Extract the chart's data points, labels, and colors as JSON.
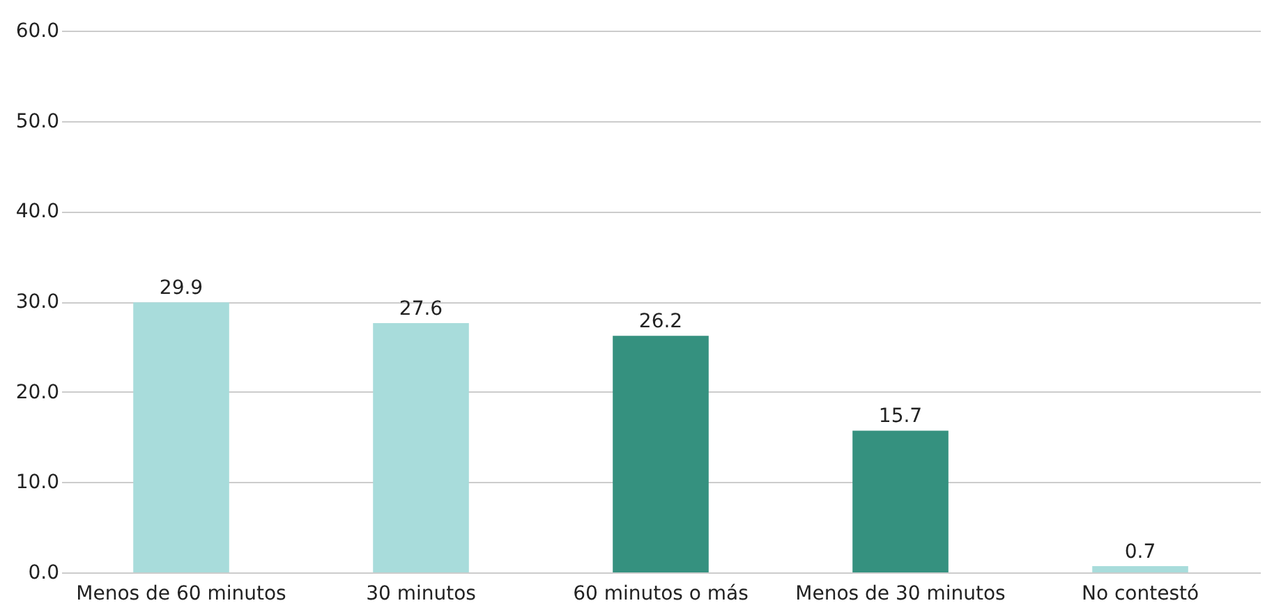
{
  "chart_data": {
    "type": "bar",
    "categories": [
      "Menos de 60 minutos",
      "30 minutos",
      "60 minutos o más",
      "Menos de 30 minutos",
      "No contestó"
    ],
    "values": [
      29.9,
      27.6,
      26.2,
      15.7,
      0.7
    ],
    "colors": [
      "#a8dcdb",
      "#a8dcdb",
      "#35917f",
      "#35917f",
      "#a8dcdb"
    ],
    "ylim": [
      0,
      60
    ],
    "yticks": [
      {
        "value": 0,
        "label": "0.0"
      },
      {
        "value": 10,
        "label": "10.0"
      },
      {
        "value": 20,
        "label": "20.0"
      },
      {
        "value": 30,
        "label": "30.0"
      },
      {
        "value": 40,
        "label": "40.0"
      },
      {
        "value": 50,
        "label": "50.0"
      },
      {
        "value": 60,
        "label": "60.0"
      }
    ],
    "grid": "y",
    "data_labels": true
  }
}
